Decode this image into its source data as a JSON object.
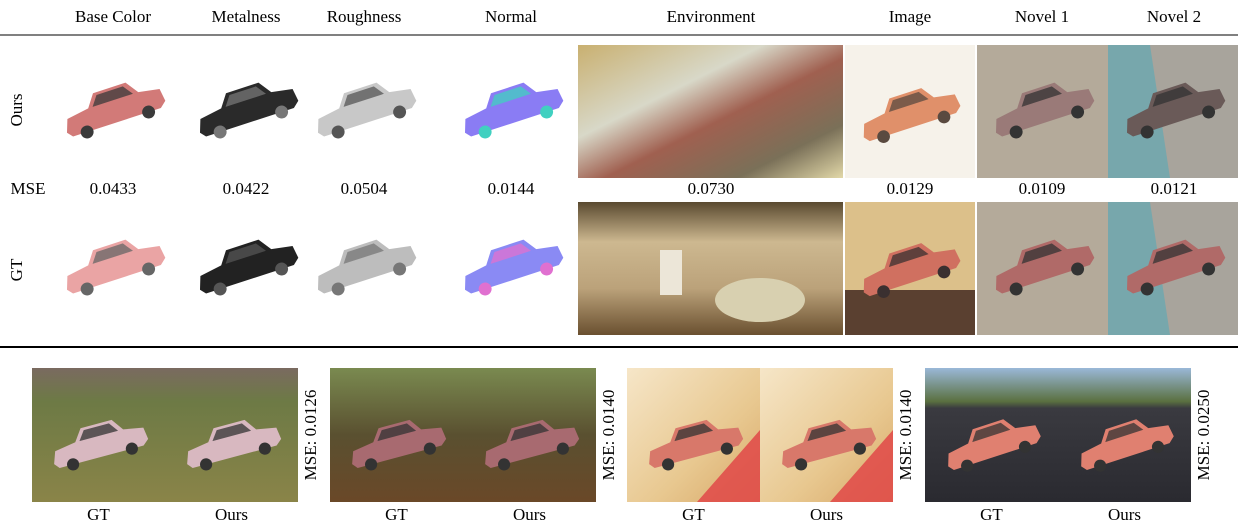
{
  "top_grid": {
    "columns": [
      "Base Color",
      "Metalness",
      "Roughness",
      "Normal",
      "Environment",
      "Image",
      "Novel 1",
      "Novel 2"
    ],
    "row_labels": {
      "ours": "Ours",
      "mse": "MSE",
      "gt": "GT"
    },
    "mse_values": [
      "0.0433",
      "0.0422",
      "0.0504",
      "0.0144",
      "0.0730",
      "0.0129",
      "0.0109",
      "0.0121"
    ]
  },
  "bottom_pairs": [
    {
      "left": "GT",
      "right": "Ours",
      "mse": "MSE: 0.0126"
    },
    {
      "left": "GT",
      "right": "Ours",
      "mse": "MSE: 0.0140"
    },
    {
      "left": "GT",
      "right": "Ours",
      "mse": "MSE: 0.0140"
    },
    {
      "left": "GT",
      "right": "Ours",
      "mse": "MSE: 0.0250"
    }
  ]
}
